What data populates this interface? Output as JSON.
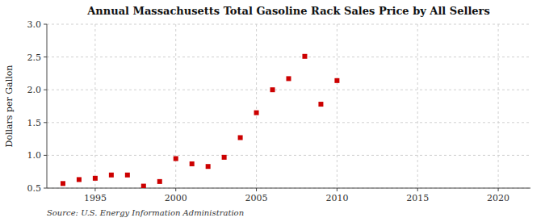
{
  "chart_data": {
    "type": "scatter",
    "title": "Annual Massachusetts Total Gasoline Rack Sales Price by All Sellers",
    "y_label": "Dollars per Gallon",
    "annotations": [
      "Source: U.S. Energy Information Administration"
    ],
    "x": [
      1993,
      1994,
      1995,
      1996,
      1997,
      1998,
      1999,
      2000,
      2001,
      2002,
      2003,
      2004,
      2005,
      2006,
      2007,
      2008,
      2009,
      2010
    ],
    "values": [
      0.57,
      0.63,
      0.65,
      0.7,
      0.7,
      0.53,
      0.6,
      0.95,
      0.87,
      0.83,
      0.97,
      1.27,
      1.65,
      2.0,
      2.17,
      2.51,
      1.78,
      2.14
    ],
    "color": "#cc0000",
    "marker": "square",
    "xlim": [
      1992,
      2022
    ],
    "ylim": [
      0.5,
      3.0
    ],
    "xticks": [
      1995,
      2000,
      2005,
      2010,
      2015,
      2020
    ],
    "yticks": [
      0.5,
      {
        "value": 1.0,
        "label": "1.0"
      },
      1.5,
      {
        "value": 2.0,
        "label": "2.0"
      },
      2.5,
      {
        "value": 3.0,
        "label": "3.0"
      }
    ],
    "grid": true
  }
}
